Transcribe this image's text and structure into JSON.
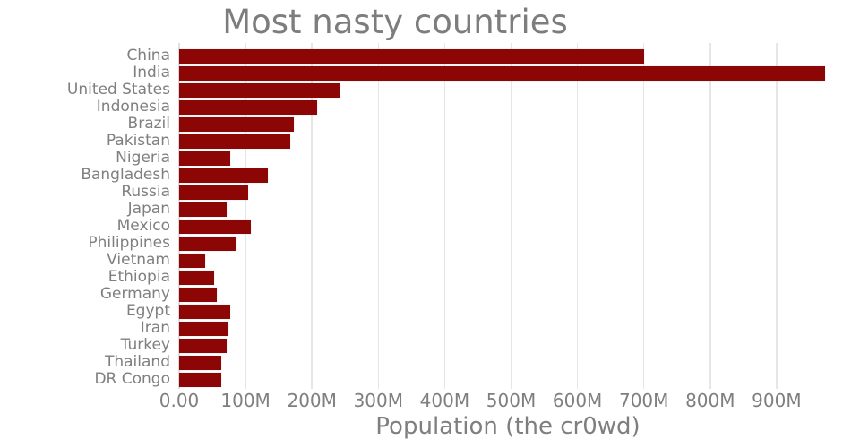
{
  "title": "Most nasty countries",
  "chart_data": {
    "type": "bar",
    "orientation": "horizontal",
    "title": "Most nasty countries",
    "xlabel": "Population (the cr0wd)",
    "ylabel": "",
    "unit": "millions",
    "xlim": [
      0,
      1000
    ],
    "grid": "vertical-only",
    "legend": "none",
    "categories": [
      "China",
      "India",
      "United States",
      "Indonesia",
      "Brazil",
      "Pakistan",
      "Nigeria",
      "Bangladesh",
      "Russia",
      "Japan",
      "Mexico",
      "Philippines",
      "Vietnam",
      "Ethiopia",
      "Germany",
      "Egypt",
      "Iran",
      "Turkey",
      "Thailand",
      "DR Congo"
    ],
    "values": [
      700,
      973,
      242,
      208,
      173,
      167,
      77,
      133,
      104,
      72,
      108,
      86,
      39,
      52,
      57,
      77,
      74,
      71,
      64,
      63
    ],
    "xticks": {
      "positions": [
        0,
        100,
        200,
        300,
        400,
        500,
        600,
        700,
        800,
        900
      ],
      "labels": [
        "0.00",
        "100M",
        "200M",
        "300M",
        "400M",
        "500M",
        "600M",
        "700M",
        "800M",
        "900M"
      ]
    },
    "colors": {
      "bar": "#8c0606",
      "text": "#7f7f7f",
      "title_text": "#7d7d7d",
      "gridline": "#e6e6e6",
      "background": "#ffffff"
    }
  }
}
